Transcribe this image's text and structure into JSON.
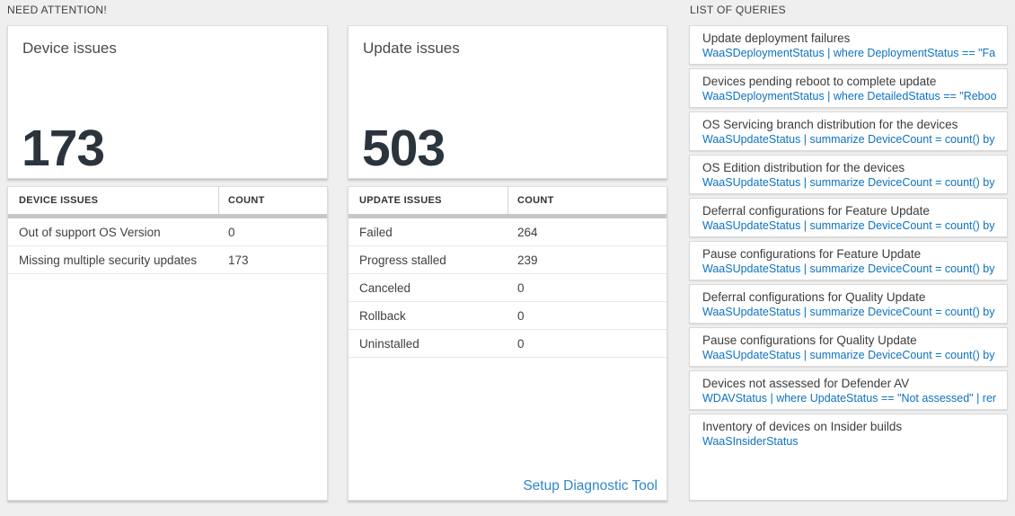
{
  "sections": {
    "need_attention_label": "NEED ATTENTION!",
    "queries_label": "LIST OF QUERIES"
  },
  "device_tile": {
    "title": "Device issues",
    "count": "173"
  },
  "device_table": {
    "headers": [
      "DEVICE ISSUES",
      "COUNT"
    ],
    "rows": [
      {
        "label": "Out of support OS Version",
        "count": "0"
      },
      {
        "label": "Missing multiple security updates",
        "count": "173"
      }
    ]
  },
  "update_tile": {
    "title": "Update issues",
    "count": "503"
  },
  "update_table": {
    "headers": [
      "UPDATE ISSUES",
      "COUNT"
    ],
    "rows": [
      {
        "label": "Failed",
        "count": "264"
      },
      {
        "label": "Progress stalled",
        "count": "239"
      },
      {
        "label": "Canceled",
        "count": "0"
      },
      {
        "label": "Rollback",
        "count": "0"
      },
      {
        "label": "Uninstalled",
        "count": "0"
      }
    ],
    "link_label": "Setup Diagnostic Tool"
  },
  "queries": [
    {
      "title": "Update deployment failures",
      "query": "WaaSDeploymentStatus | where DeploymentStatus == \"Failed\" |..."
    },
    {
      "title": "Devices pending reboot to complete update",
      "query": "WaaSDeploymentStatus | where DetailedStatus == \"Reboot pend..."
    },
    {
      "title": "OS Servicing branch distribution for the devices",
      "query": "WaaSUpdateStatus | summarize DeviceCount = count() by OSSer..."
    },
    {
      "title": "OS Edition distribution for the devices",
      "query": "WaaSUpdateStatus | summarize DeviceCount = count() by OSEdit..."
    },
    {
      "title": "Deferral configurations for Feature Update",
      "query": "WaaSUpdateStatus | summarize DeviceCount = count() by Featur..."
    },
    {
      "title": "Pause configurations for Feature Update",
      "query": "WaaSUpdateStatus | summarize DeviceCount = count() by Featur..."
    },
    {
      "title": "Deferral configurations for Quality Update",
      "query": "WaaSUpdateStatus | summarize DeviceCount = count() by Qualit..."
    },
    {
      "title": "Pause configurations for Quality Update",
      "query": "WaaSUpdateStatus | summarize DeviceCount = count() by Qualit..."
    },
    {
      "title": "Devices not assessed for Defender AV",
      "query": "WDAVStatus | where UpdateStatus == \"Not assessed\" | render ta..."
    },
    {
      "title": "Inventory of devices on Insider builds",
      "query": "WaaSInsiderStatus"
    }
  ],
  "colors": {
    "query_link_blue": "#0d72c0",
    "action_link_blue": "#2f86c9",
    "big_number_color": "#2b333c",
    "scrollbar_gray": "#c7c7c7",
    "page_background": "#efefef"
  }
}
